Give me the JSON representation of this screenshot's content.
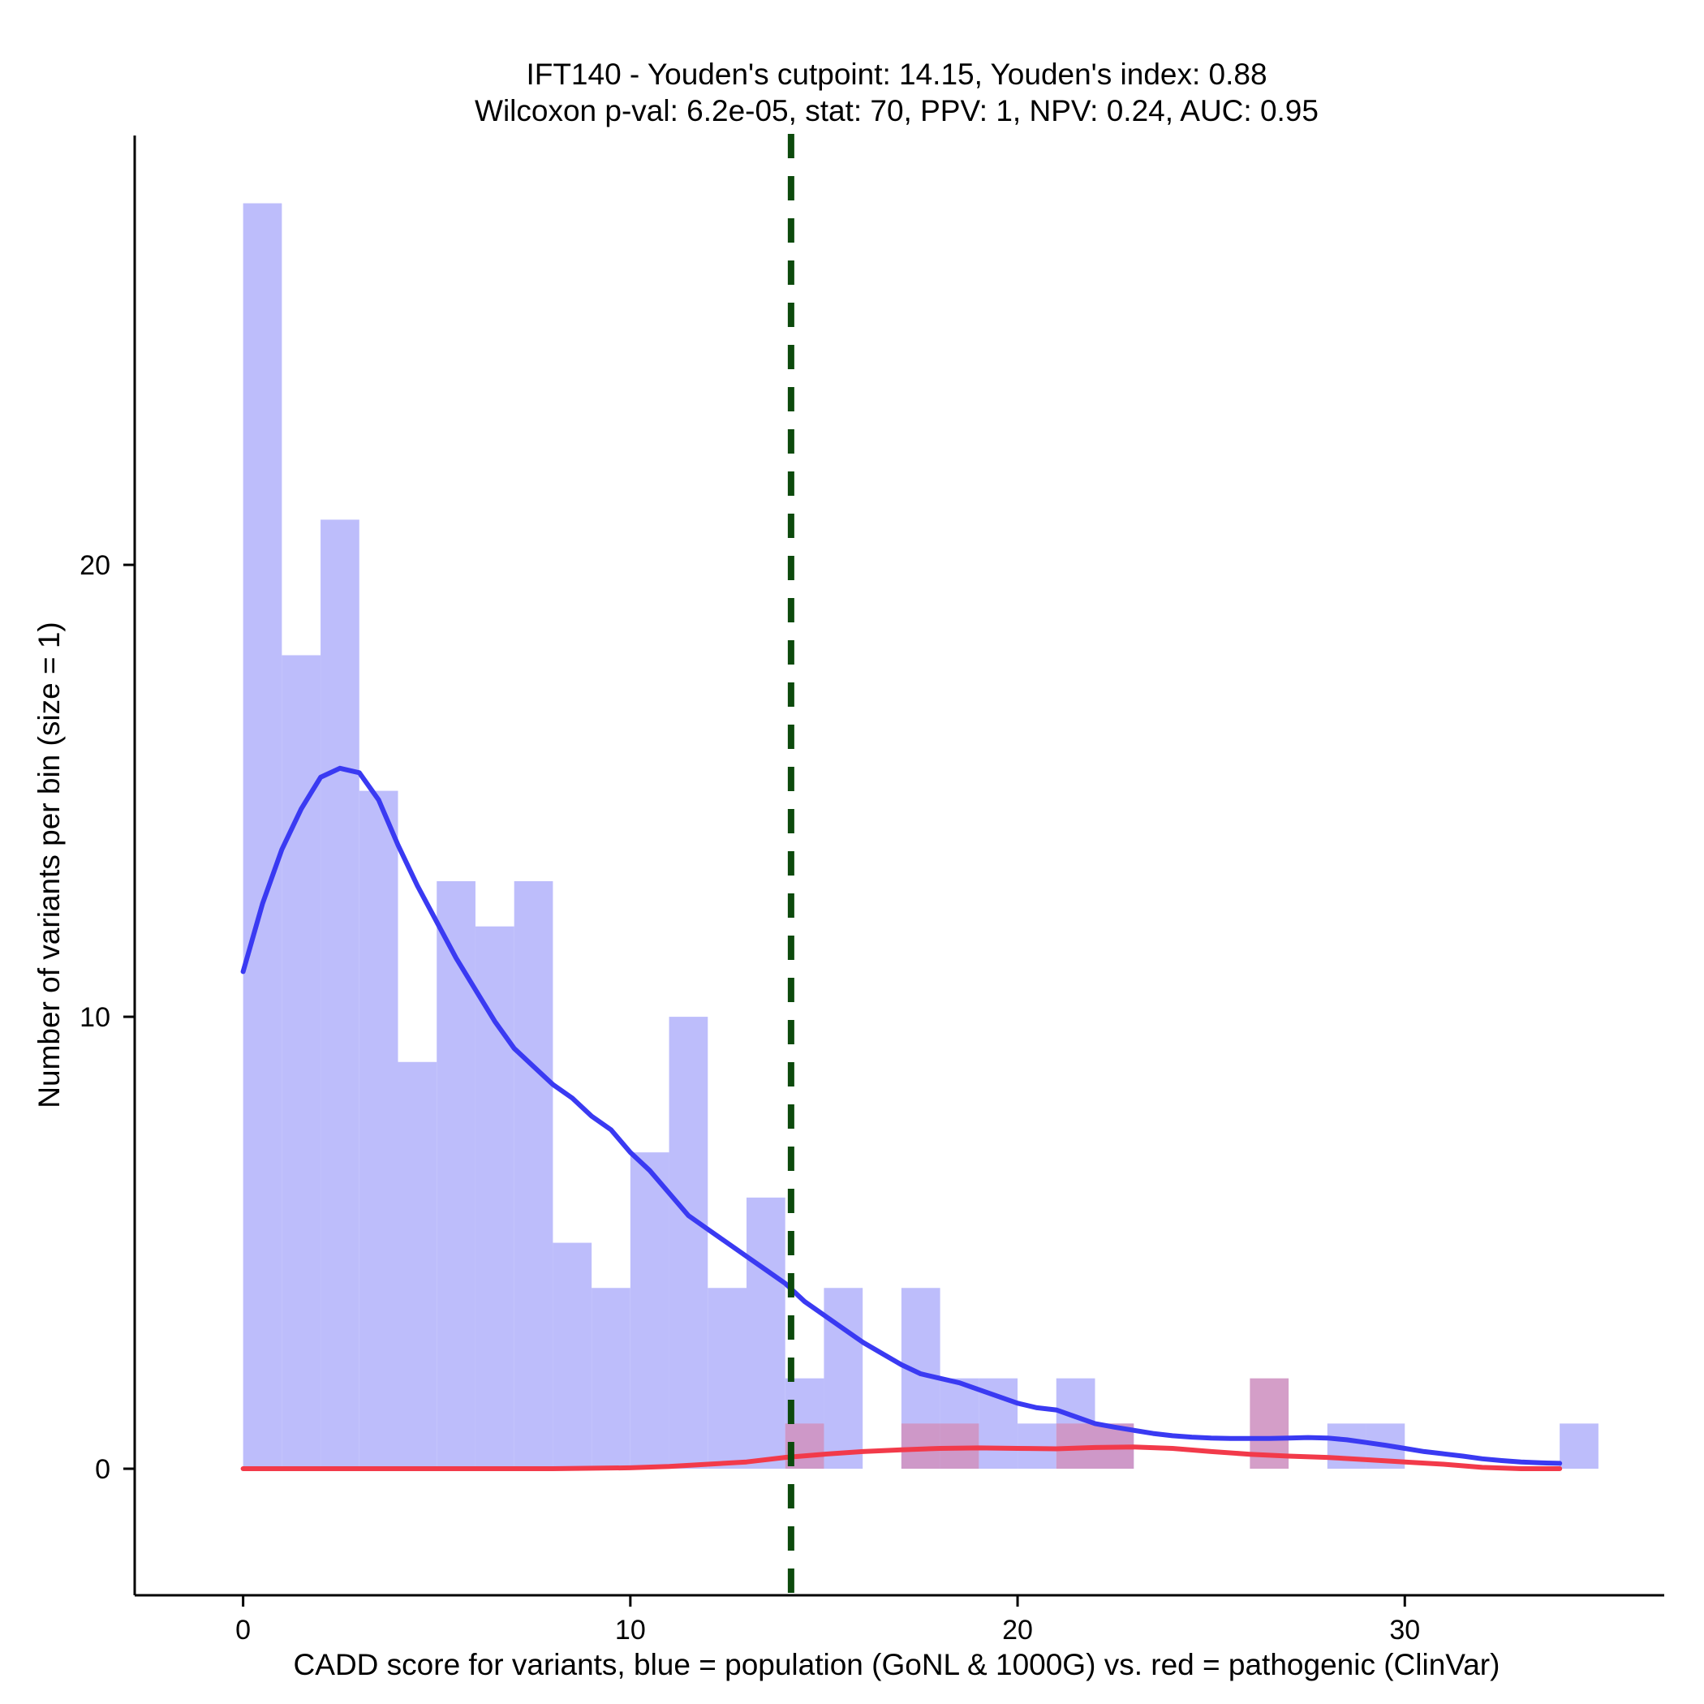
{
  "chart_data": {
    "type": "bar",
    "title": "IFT140 - Youden's cutpoint: 14.15, Youden's index: 0.88",
    "subtitle": "Wilcoxon p-val: 6.2e-05, stat: 70, PPV: 1, NPV: 0.24, AUC: 0.95",
    "xlabel": "CADD score for variants, blue = population (GoNL & 1000G) vs. red = pathogenic (ClinVar)",
    "ylabel": "Number of variants per bin (size = 1)",
    "xlim": [
      -2.8,
      36.7
    ],
    "ylim": [
      -2.8,
      29.5
    ],
    "x_ticks": [
      0,
      10,
      20,
      30
    ],
    "y_ticks": [
      0,
      10,
      20
    ],
    "bin_width": 1,
    "cutpoint": 14.15,
    "colors": {
      "population_bar": "#bdbdfb",
      "pathogenic_bar": "#cf94c2",
      "population_line": "#3a3af2",
      "pathogenic_line": "#f23a4a",
      "cutpoint_line": "#0d4a0d",
      "axis": "#000000"
    },
    "series": [
      {
        "name": "population (GoNL & 1000G)",
        "bins_start": [
          0,
          1,
          2,
          3,
          4,
          5,
          6,
          7,
          8,
          9,
          10,
          11,
          12,
          13,
          14,
          15,
          16,
          17,
          18,
          19,
          20,
          21,
          22,
          23,
          24,
          25,
          26,
          27,
          28,
          29,
          30,
          31,
          32,
          33,
          34
        ],
        "values": [
          28,
          18,
          21,
          15,
          9,
          13,
          12,
          13,
          5,
          4,
          7,
          10,
          4,
          6,
          2,
          4,
          0,
          4,
          2,
          2,
          1,
          2,
          1,
          0,
          0,
          0,
          0,
          0,
          1,
          1,
          0,
          0,
          0,
          0,
          1
        ]
      },
      {
        "name": "pathogenic (ClinVar)",
        "bins_start": [
          14,
          17,
          18,
          21,
          22,
          26
        ],
        "values": [
          1,
          1,
          1,
          1,
          1,
          2
        ]
      }
    ],
    "density_lines": [
      {
        "name": "population density",
        "x": [
          0,
          0.5,
          1,
          1.5,
          2,
          2.5,
          3,
          3.5,
          4,
          4.5,
          5,
          5.5,
          6,
          6.5,
          7,
          7.5,
          8,
          8.5,
          9,
          9.5,
          10,
          10.5,
          11,
          11.5,
          12,
          12.5,
          13,
          13.5,
          14,
          14.5,
          15,
          15.5,
          16,
          16.5,
          17,
          17.5,
          18,
          18.5,
          19,
          19.5,
          20,
          20.5,
          21,
          21.5,
          22,
          22.5,
          23,
          23.5,
          24,
          24.5,
          25,
          25.5,
          26,
          26.5,
          27,
          27.5,
          28,
          28.5,
          29,
          29.5,
          30,
          30.5,
          31,
          31.5,
          32,
          32.5,
          33,
          33.5,
          34
        ],
        "y": [
          11.0,
          12.5,
          13.7,
          14.6,
          15.3,
          15.5,
          15.4,
          14.8,
          13.8,
          12.9,
          12.1,
          11.3,
          10.6,
          9.9,
          9.3,
          8.9,
          8.5,
          8.2,
          7.8,
          7.5,
          7.0,
          6.6,
          6.1,
          5.6,
          5.3,
          5.0,
          4.7,
          4.4,
          4.1,
          3.7,
          3.4,
          3.1,
          2.8,
          2.55,
          2.3,
          2.1,
          2.0,
          1.9,
          1.75,
          1.6,
          1.45,
          1.35,
          1.3,
          1.15,
          1.0,
          0.92,
          0.85,
          0.78,
          0.73,
          0.7,
          0.68,
          0.67,
          0.67,
          0.67,
          0.68,
          0.69,
          0.68,
          0.64,
          0.58,
          0.52,
          0.45,
          0.38,
          0.33,
          0.28,
          0.22,
          0.18,
          0.15,
          0.13,
          0.12
        ]
      },
      {
        "name": "pathogenic density",
        "x": [
          0,
          2,
          4,
          6,
          8,
          10,
          11,
          12,
          13,
          14,
          15,
          16,
          17,
          18,
          19,
          20,
          21,
          22,
          23,
          24,
          25,
          26,
          27,
          28,
          29,
          30,
          31,
          32,
          33,
          34
        ],
        "y": [
          0,
          0,
          0,
          0,
          0,
          0.02,
          0.05,
          0.1,
          0.15,
          0.25,
          0.32,
          0.38,
          0.42,
          0.45,
          0.46,
          0.45,
          0.44,
          0.47,
          0.48,
          0.45,
          0.38,
          0.32,
          0.28,
          0.25,
          0.2,
          0.15,
          0.1,
          0.03,
          0.0,
          0.0
        ]
      }
    ]
  }
}
